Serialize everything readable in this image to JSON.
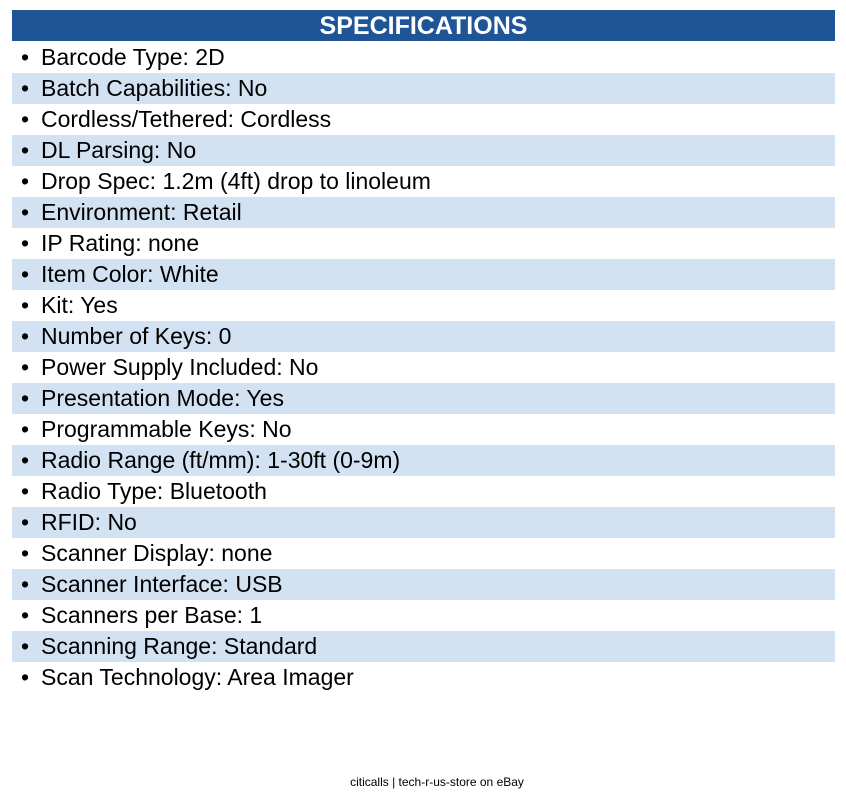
{
  "header": {
    "title": "SPECIFICATIONS"
  },
  "items": [
    "Barcode Type: 2D",
    "Batch Capabilities: No",
    "Cordless/Tethered: Cordless",
    "DL Parsing: No",
    "Drop Spec: 1.2m (4ft) drop to linoleum",
    "Environment: Retail",
    "IP Rating: none",
    "Item Color: White",
    "Kit: Yes",
    "Number of Keys: 0",
    "Power Supply Included: No",
    "Presentation Mode: Yes",
    "Programmable Keys: No",
    "Radio Range (ft/mm): 1-30ft (0-9m)",
    "Radio Type: Bluetooth",
    "RFID: No",
    "Scanner Display: none",
    "Scanner Interface: USB",
    "Scanners per Base: 1",
    "Scanning Range: Standard",
    "Scan Technology: Area Imager"
  ],
  "footer": "citicalls | tech-r-us-store on eBay"
}
